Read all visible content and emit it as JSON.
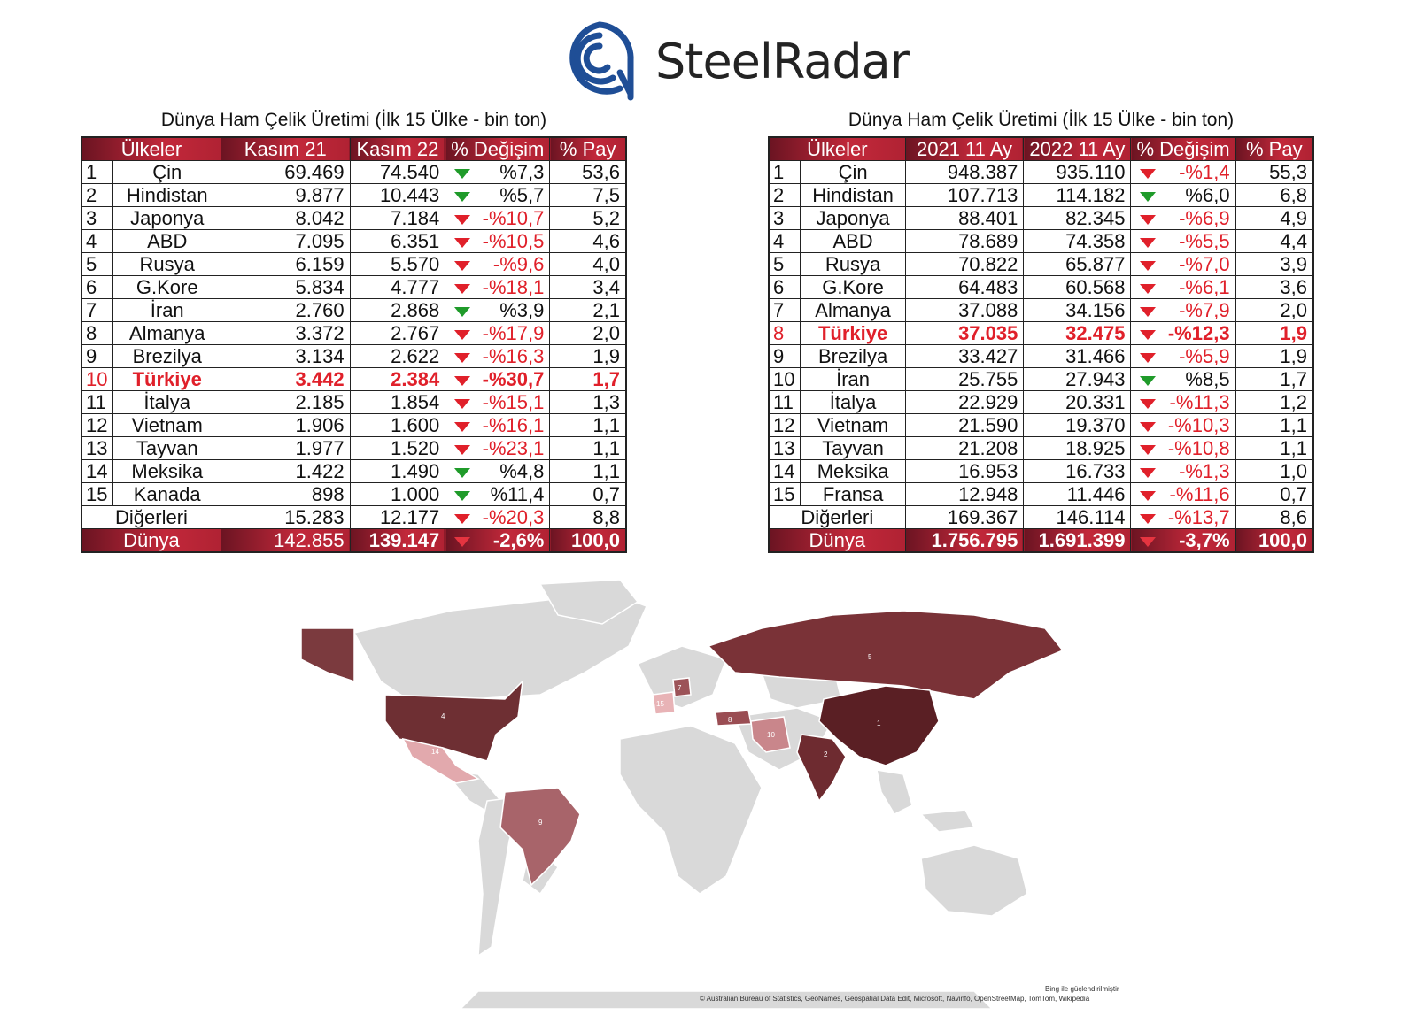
{
  "logo": {
    "steel": "Steel",
    "radar": "Radar"
  },
  "table_left": {
    "title": "Dünya Ham Çelik Üretimi (İlk 15 Ülke - bin ton)",
    "headers": [
      "Ülkeler",
      "Kasım 21",
      "Kasım 22",
      "% Değişim",
      "% Pay"
    ],
    "rows": [
      {
        "rank": "1",
        "country": "Çin",
        "a": "69.469",
        "b": "74.540",
        "chg": "%7,3",
        "dir": "green",
        "pay": "53,6"
      },
      {
        "rank": "2",
        "country": "Hindistan",
        "a": "9.877",
        "b": "10.443",
        "chg": "%5,7",
        "dir": "green",
        "pay": "7,5"
      },
      {
        "rank": "3",
        "country": "Japonya",
        "a": "8.042",
        "b": "7.184",
        "chg": "-%10,7",
        "dir": "red",
        "pay": "5,2"
      },
      {
        "rank": "4",
        "country": "ABD",
        "a": "7.095",
        "b": "6.351",
        "chg": "-%10,5",
        "dir": "red",
        "pay": "4,6"
      },
      {
        "rank": "5",
        "country": "Rusya",
        "a": "6.159",
        "b": "5.570",
        "chg": "-%9,6",
        "dir": "red",
        "pay": "4,0"
      },
      {
        "rank": "6",
        "country": "G.Kore",
        "a": "5.834",
        "b": "4.777",
        "chg": "-%18,1",
        "dir": "red",
        "pay": "3,4"
      },
      {
        "rank": "7",
        "country": "İran",
        "a": "2.760",
        "b": "2.868",
        "chg": "%3,9",
        "dir": "green",
        "pay": "2,1"
      },
      {
        "rank": "8",
        "country": "Almanya",
        "a": "3.372",
        "b": "2.767",
        "chg": "-%17,9",
        "dir": "red",
        "pay": "2,0"
      },
      {
        "rank": "9",
        "country": "Brezilya",
        "a": "3.134",
        "b": "2.622",
        "chg": "-%16,3",
        "dir": "red",
        "pay": "1,9"
      },
      {
        "rank": "10",
        "country": "Türkiye",
        "a": "3.442",
        "b": "2.384",
        "chg": "-%30,7",
        "dir": "red",
        "pay": "1,7",
        "highlight": true
      },
      {
        "rank": "11",
        "country": "İtalya",
        "a": "2.185",
        "b": "1.854",
        "chg": "-%15,1",
        "dir": "red",
        "pay": "1,3"
      },
      {
        "rank": "12",
        "country": "Vietnam",
        "a": "1.906",
        "b": "1.600",
        "chg": "-%16,1",
        "dir": "red",
        "pay": "1,1"
      },
      {
        "rank": "13",
        "country": "Tayvan",
        "a": "1.977",
        "b": "1.520",
        "chg": "-%23,1",
        "dir": "red",
        "pay": "1,1"
      },
      {
        "rank": "14",
        "country": "Meksika",
        "a": "1.422",
        "b": "1.490",
        "chg": "%4,8",
        "dir": "green",
        "pay": "1,1"
      },
      {
        "rank": "15",
        "country": "Kanada",
        "a": "898",
        "b": "1.000",
        "chg": "%11,4",
        "dir": "green",
        "pay": "0,7"
      }
    ],
    "others": {
      "label": "Diğerleri",
      "a": "15.283",
      "b": "12.177",
      "chg": "-%20,3",
      "pay": "8,8"
    },
    "world": {
      "label": "Dünya",
      "a": "142.855",
      "b": "139.147",
      "chg": "-2,6%",
      "pay": "100,0"
    }
  },
  "table_right": {
    "title": "Dünya Ham Çelik Üretimi (İlk 15 Ülke - bin ton)",
    "headers": [
      "Ülkeler",
      "2021 11 Ay",
      "2022 11 Ay",
      "% Değişim",
      "% Pay"
    ],
    "rows": [
      {
        "rank": "1",
        "country": "Çin",
        "a": "948.387",
        "b": "935.110",
        "chg": "-%1,4",
        "dir": "red",
        "pay": "55,3"
      },
      {
        "rank": "2",
        "country": "Hindistan",
        "a": "107.713",
        "b": "114.182",
        "chg": "%6,0",
        "dir": "green",
        "pay": "6,8"
      },
      {
        "rank": "3",
        "country": "Japonya",
        "a": "88.401",
        "b": "82.345",
        "chg": "-%6,9",
        "dir": "red",
        "pay": "4,9"
      },
      {
        "rank": "4",
        "country": "ABD",
        "a": "78.689",
        "b": "74.358",
        "chg": "-%5,5",
        "dir": "red",
        "pay": "4,4"
      },
      {
        "rank": "5",
        "country": "Rusya",
        "a": "70.822",
        "b": "65.877",
        "chg": "-%7,0",
        "dir": "red",
        "pay": "3,9"
      },
      {
        "rank": "6",
        "country": "G.Kore",
        "a": "64.483",
        "b": "60.568",
        "chg": "-%6,1",
        "dir": "red",
        "pay": "3,6"
      },
      {
        "rank": "7",
        "country": "Almanya",
        "a": "37.088",
        "b": "34.156",
        "chg": "-%7,9",
        "dir": "red",
        "pay": "2,0"
      },
      {
        "rank": "8",
        "country": "Türkiye",
        "a": "37.035",
        "b": "32.475",
        "chg": "-%12,3",
        "dir": "red",
        "pay": "1,9",
        "highlight": true
      },
      {
        "rank": "9",
        "country": "Brezilya",
        "a": "33.427",
        "b": "31.466",
        "chg": "-%5,9",
        "dir": "red",
        "pay": "1,9"
      },
      {
        "rank": "10",
        "country": "İran",
        "a": "25.755",
        "b": "27.943",
        "chg": "%8,5",
        "dir": "green",
        "pay": "1,7"
      },
      {
        "rank": "11",
        "country": "İtalya",
        "a": "22.929",
        "b": "20.331",
        "chg": "-%11,3",
        "dir": "red",
        "pay": "1,2"
      },
      {
        "rank": "12",
        "country": "Vietnam",
        "a": "21.590",
        "b": "19.370",
        "chg": "-%10,3",
        "dir": "red",
        "pay": "1,1"
      },
      {
        "rank": "13",
        "country": "Tayvan",
        "a": "21.208",
        "b": "18.925",
        "chg": "-%10,8",
        "dir": "red",
        "pay": "1,1"
      },
      {
        "rank": "14",
        "country": "Meksika",
        "a": "16.953",
        "b": "16.733",
        "chg": "-%1,3",
        "dir": "red",
        "pay": "1,0"
      },
      {
        "rank": "15",
        "country": "Fransa",
        "a": "12.948",
        "b": "11.446",
        "chg": "-%11,6",
        "dir": "red",
        "pay": "0,7"
      }
    ],
    "others": {
      "label": "Diğerleri",
      "a": "169.367",
      "b": "146.114",
      "chg": "-%13,7",
      "pay": "8,6"
    },
    "world": {
      "label": "Dünya",
      "a": "1.756.795",
      "b": "1.691.399",
      "chg": "-3,7%",
      "pay": "100,0"
    }
  },
  "map": {
    "labels": [
      "1",
      "2",
      "4",
      "5",
      "7",
      "8",
      "9",
      "10",
      "14",
      "15"
    ],
    "credit_top": "Bing ile güçlendirilmiştir",
    "credit_bottom": "© Australian Bureau of Statistics, GeoNames, Geospatial Data Edit, Microsoft, Navinfo, OpenStreetMap, TomTom, Wikipedia"
  },
  "colors": {
    "accent": "#c2283a",
    "dark": "#6b1422",
    "down": "#e0202a",
    "up": "#1f9b2a",
    "map_land": "#d9d9d9"
  }
}
